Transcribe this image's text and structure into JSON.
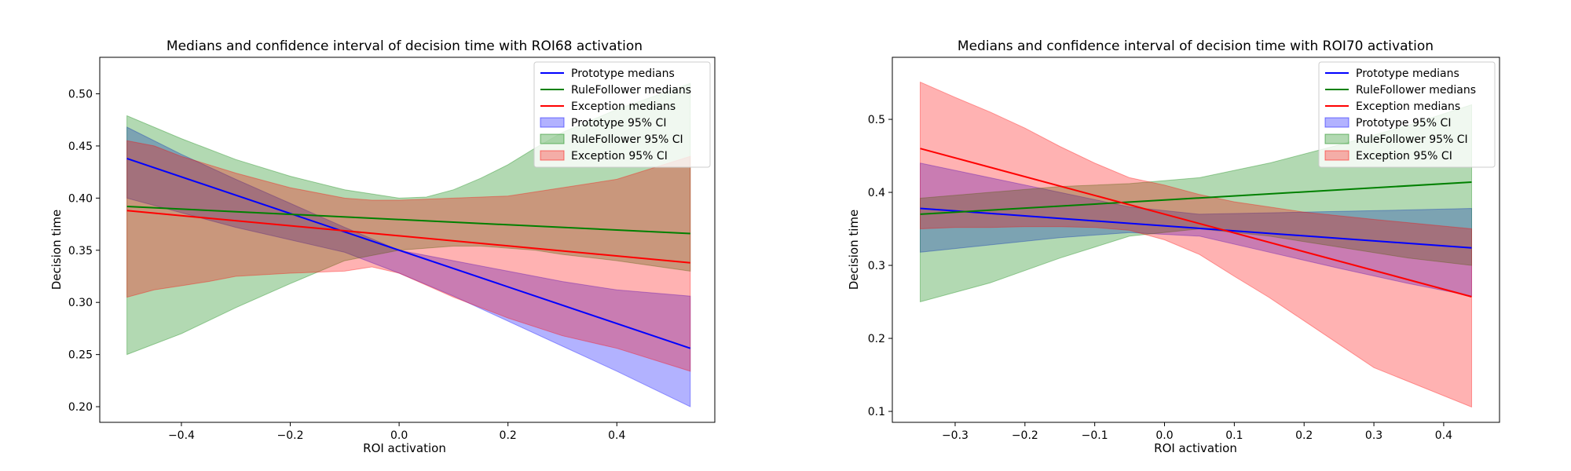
{
  "chart_data": [
    {
      "type": "line",
      "title": "Medians and confidence interval of decision time with ROI68 activation",
      "xlabel": "ROI activation",
      "ylabel": "Decision time",
      "xlim": [
        -0.55,
        0.58
      ],
      "ylim": [
        0.185,
        0.535
      ],
      "xticks": [
        -0.4,
        -0.2,
        0.0,
        0.2,
        0.4
      ],
      "xtick_labels": [
        "−0.4",
        "−0.2",
        "0.0",
        "0.2",
        "0.4"
      ],
      "yticks": [
        0.2,
        0.25,
        0.3,
        0.35,
        0.4,
        0.45,
        0.5
      ],
      "ytick_labels": [
        "0.20",
        "0.25",
        "0.30",
        "0.35",
        "0.40",
        "0.45",
        "0.50"
      ],
      "legend_position": "top-right",
      "series": [
        {
          "name": "Prototype medians",
          "kind": "line",
          "color": "#0000ff",
          "x": [
            -0.5,
            0.535
          ],
          "y": [
            0.438,
            0.256
          ]
        },
        {
          "name": "RuleFollower medians",
          "kind": "line",
          "color": "#008000",
          "x": [
            -0.5,
            0.535
          ],
          "y": [
            0.392,
            0.366
          ]
        },
        {
          "name": "Exception medians",
          "kind": "line",
          "color": "#ff0000",
          "x": [
            -0.5,
            0.535
          ],
          "y": [
            0.388,
            0.338
          ]
        }
      ],
      "bands": [
        {
          "name": "Prototype 95% CI",
          "color": "#0000ff",
          "opacity": 0.3,
          "x": [
            -0.5,
            -0.4,
            -0.3,
            -0.2,
            -0.1,
            0.0,
            0.1,
            0.2,
            0.3,
            0.4,
            0.535
          ],
          "upper": [
            0.468,
            0.442,
            0.418,
            0.395,
            0.372,
            0.35,
            0.34,
            0.33,
            0.32,
            0.312,
            0.306
          ],
          "lower": [
            0.4,
            0.386,
            0.372,
            0.36,
            0.348,
            0.328,
            0.306,
            0.282,
            0.258,
            0.234,
            0.2
          ]
        },
        {
          "name": "RuleFollower 95% CI",
          "color": "#008000",
          "opacity": 0.3,
          "x": [
            -0.5,
            -0.4,
            -0.3,
            -0.2,
            -0.1,
            0.0,
            0.05,
            0.1,
            0.15,
            0.2,
            0.25,
            0.3,
            0.4,
            0.535
          ],
          "upper": [
            0.479,
            0.457,
            0.437,
            0.421,
            0.408,
            0.4,
            0.401,
            0.408,
            0.419,
            0.432,
            0.448,
            0.463,
            0.485,
            0.51
          ],
          "lower": [
            0.25,
            0.27,
            0.295,
            0.318,
            0.34,
            0.35,
            0.352,
            0.354,
            0.354,
            0.352,
            0.35,
            0.346,
            0.34,
            0.33
          ]
        },
        {
          "name": "Exception 95% CI",
          "color": "#ff0000",
          "opacity": 0.3,
          "x": [
            -0.5,
            -0.45,
            -0.4,
            -0.35,
            -0.3,
            -0.2,
            -0.1,
            -0.05,
            0.0,
            0.1,
            0.2,
            0.3,
            0.4,
            0.535
          ],
          "upper": [
            0.455,
            0.45,
            0.44,
            0.432,
            0.424,
            0.41,
            0.4,
            0.398,
            0.398,
            0.4,
            0.402,
            0.41,
            0.418,
            0.44
          ],
          "lower": [
            0.305,
            0.312,
            0.316,
            0.32,
            0.325,
            0.328,
            0.33,
            0.334,
            0.328,
            0.305,
            0.285,
            0.268,
            0.256,
            0.234
          ]
        }
      ]
    },
    {
      "type": "line",
      "title": "Medians and confidence interval of decision time with ROI70 activation",
      "xlabel": "ROI activation",
      "ylabel": "Decision time",
      "xlim": [
        -0.39,
        0.48
      ],
      "ylim": [
        0.085,
        0.585
      ],
      "xticks": [
        -0.3,
        -0.2,
        -0.1,
        0.0,
        0.1,
        0.2,
        0.3,
        0.4
      ],
      "xtick_labels": [
        "−0.3",
        "−0.2",
        "−0.1",
        "0.0",
        "0.1",
        "0.2",
        "0.3",
        "0.4"
      ],
      "yticks": [
        0.1,
        0.2,
        0.3,
        0.4,
        0.5
      ],
      "ytick_labels": [
        "0.1",
        "0.2",
        "0.3",
        "0.4",
        "0.5"
      ],
      "legend_position": "top-right",
      "series": [
        {
          "name": "Prototype medians",
          "kind": "line",
          "color": "#0000ff",
          "x": [
            -0.35,
            0.44
          ],
          "y": [
            0.378,
            0.324
          ]
        },
        {
          "name": "RuleFollower medians",
          "kind": "line",
          "color": "#008000",
          "x": [
            -0.35,
            0.44
          ],
          "y": [
            0.37,
            0.414
          ]
        },
        {
          "name": "Exception medians",
          "kind": "line",
          "color": "#ff0000",
          "x": [
            -0.35,
            0.44
          ],
          "y": [
            0.46,
            0.257
          ]
        }
      ],
      "bands": [
        {
          "name": "Prototype 95% CI",
          "color": "#0000ff",
          "opacity": 0.3,
          "x": [
            -0.35,
            -0.25,
            -0.15,
            -0.05,
            0.05,
            0.15,
            0.25,
            0.35,
            0.44
          ],
          "upper": [
            0.44,
            0.42,
            0.4,
            0.38,
            0.37,
            0.372,
            0.374,
            0.376,
            0.378
          ],
          "lower": [
            0.318,
            0.328,
            0.338,
            0.345,
            0.34,
            0.318,
            0.296,
            0.275,
            0.258
          ]
        },
        {
          "name": "RuleFollower 95% CI",
          "color": "#008000",
          "opacity": 0.3,
          "x": [
            -0.35,
            -0.25,
            -0.15,
            -0.05,
            0.05,
            0.15,
            0.25,
            0.35,
            0.44
          ],
          "upper": [
            0.392,
            0.4,
            0.408,
            0.412,
            0.42,
            0.44,
            0.465,
            0.492,
            0.52
          ],
          "lower": [
            0.25,
            0.276,
            0.31,
            0.34,
            0.35,
            0.34,
            0.325,
            0.31,
            0.3
          ]
        },
        {
          "name": "Exception 95% CI",
          "color": "#ff0000",
          "opacity": 0.3,
          "x": [
            -0.35,
            -0.3,
            -0.25,
            -0.2,
            -0.15,
            -0.1,
            -0.05,
            0.0,
            0.05,
            0.1,
            0.15,
            0.2,
            0.3,
            0.44
          ],
          "upper": [
            0.551,
            0.53,
            0.51,
            0.488,
            0.463,
            0.44,
            0.42,
            0.41,
            0.397,
            0.387,
            0.38,
            0.373,
            0.363,
            0.35
          ],
          "lower": [
            0.35,
            0.352,
            0.352,
            0.353,
            0.353,
            0.352,
            0.348,
            0.335,
            0.315,
            0.285,
            0.256,
            0.224,
            0.16,
            0.106
          ]
        }
      ]
    }
  ]
}
